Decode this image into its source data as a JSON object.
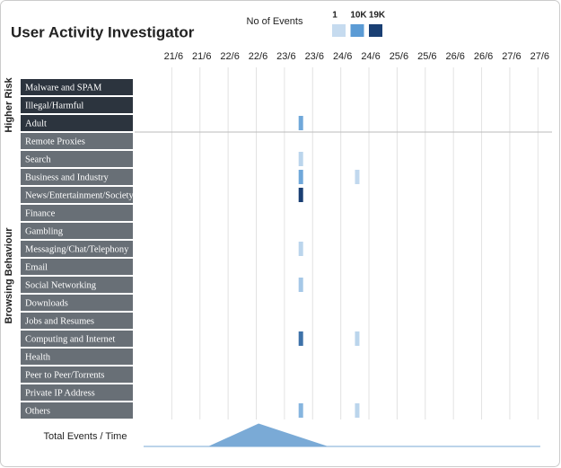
{
  "chart_data": {
    "type": "heatmap",
    "title": "User Activity Investigator",
    "legend": {
      "title": "No of Events",
      "stops": [
        {
          "value": 1,
          "label": "1",
          "color": "#c6dbef"
        },
        {
          "value": 10000,
          "label": "10K",
          "color": "#5b9bd5"
        },
        {
          "value": 19000,
          "label": "19K",
          "color": "#1a3f73"
        }
      ]
    },
    "xlim": [
      -12,
      162
    ],
    "xticks": [
      {
        "value": 0,
        "label": "21/6"
      },
      {
        "value": 12,
        "label": "21/6"
      },
      {
        "value": 24,
        "label": "22/6"
      },
      {
        "value": 36,
        "label": "22/6"
      },
      {
        "value": 48,
        "label": "23/6"
      },
      {
        "value": 60,
        "label": "23/6"
      },
      {
        "value": 72,
        "label": "24/6"
      },
      {
        "value": 84,
        "label": "24/6"
      },
      {
        "value": 96,
        "label": "25/6"
      },
      {
        "value": 108,
        "label": "25/6"
      },
      {
        "value": 120,
        "label": "26/6"
      },
      {
        "value": 132,
        "label": "26/6"
      },
      {
        "value": 144,
        "label": "27/6"
      },
      {
        "value": 156,
        "label": "27/6"
      }
    ],
    "groups": [
      {
        "name": "Higher Risk",
        "color": "#2c343e",
        "rows": [
          {
            "name": "Malware and SPAM",
            "x": [],
            "values": []
          },
          {
            "name": "Illegal/Harmful",
            "x": [],
            "values": []
          },
          {
            "name": "Adult",
            "x": [
              55
            ],
            "values": [
              8000
            ]
          }
        ]
      },
      {
        "name": "Browsing Behaviour",
        "color": "#686f76",
        "rows": [
          {
            "name": "Remote Proxies",
            "x": [],
            "values": []
          },
          {
            "name": "Search",
            "x": [
              55
            ],
            "values": [
              1000
            ]
          },
          {
            "name": "Business and Industry",
            "x": [
              55,
              79
            ],
            "values": [
              8000,
              500
            ]
          },
          {
            "name": "News/Entertainment/Society",
            "x": [
              55
            ],
            "values": [
              19000
            ]
          },
          {
            "name": "Finance",
            "x": [],
            "values": []
          },
          {
            "name": "Gambling",
            "x": [],
            "values": []
          },
          {
            "name": "Messaging/Chat/Telephony",
            "x": [
              55
            ],
            "values": [
              1000
            ]
          },
          {
            "name": "Email",
            "x": [],
            "values": []
          },
          {
            "name": "Social Networking",
            "x": [
              55
            ],
            "values": [
              3000
            ]
          },
          {
            "name": "Downloads",
            "x": [],
            "values": []
          },
          {
            "name": "Jobs and Resumes",
            "x": [],
            "values": []
          },
          {
            "name": "Computing and Internet",
            "x": [
              55,
              79
            ],
            "values": [
              14000,
              1000
            ]
          },
          {
            "name": "Health",
            "x": [],
            "values": []
          },
          {
            "name": "Peer to Peer/Torrents",
            "x": [],
            "values": []
          },
          {
            "name": "Private IP Address",
            "x": [],
            "values": []
          },
          {
            "name": "Others",
            "x": [
              55,
              79
            ],
            "values": [
              6000,
              1000
            ]
          }
        ]
      }
    ],
    "total": {
      "title": "Total Events / Time",
      "color": "#7aaad6",
      "x": [
        -12,
        16,
        37,
        66,
        157
      ],
      "values": [
        0,
        0,
        52000,
        0,
        0
      ],
      "ylim": [
        0,
        52000
      ]
    }
  }
}
